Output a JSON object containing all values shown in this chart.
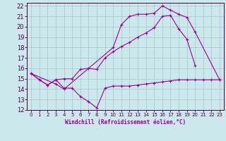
{
  "xlabel": "Windchill (Refroidissement éolien,°C)",
  "ylabel": "",
  "xlim": [
    -0.5,
    23.5
  ],
  "ylim": [
    12,
    22.3
  ],
  "yticks": [
    12,
    13,
    14,
    15,
    16,
    17,
    18,
    19,
    20,
    21,
    22
  ],
  "xticks": [
    0,
    1,
    2,
    3,
    4,
    5,
    6,
    7,
    8,
    9,
    10,
    11,
    12,
    13,
    14,
    15,
    16,
    17,
    18,
    19,
    20,
    21,
    22,
    23
  ],
  "background_color": "#cce8ec",
  "grid_color": "#aacccc",
  "line_color": "#990099",
  "line1_x": [
    0,
    1,
    2,
    3,
    4,
    5,
    6,
    7,
    8,
    9,
    10,
    11,
    12,
    13,
    14,
    15,
    16,
    17,
    18,
    19,
    20,
    21,
    22,
    23
  ],
  "line1_y": [
    15.5,
    14.9,
    14.4,
    14.9,
    14.1,
    14.1,
    13.3,
    12.8,
    12.2,
    14.1,
    14.3,
    14.3,
    14.3,
    14.4,
    14.5,
    14.6,
    14.7,
    14.8,
    14.9,
    14.9,
    14.9,
    14.9,
    14.9,
    14.9
  ],
  "line2_x": [
    0,
    1,
    2,
    3,
    4,
    5,
    6,
    7,
    8,
    9,
    10,
    11,
    12,
    13,
    14,
    15,
    16,
    17,
    18,
    19,
    20
  ],
  "line2_y": [
    15.5,
    14.9,
    14.4,
    14.9,
    15.0,
    15.0,
    15.9,
    16.0,
    15.9,
    17.0,
    17.6,
    18.1,
    18.5,
    19.0,
    19.4,
    19.9,
    21.0,
    21.1,
    19.8,
    18.8,
    16.3
  ],
  "line3_x": [
    0,
    3,
    4,
    10,
    11,
    12,
    13,
    14,
    15,
    16,
    17,
    18,
    19,
    20,
    23
  ],
  "line3_y": [
    15.5,
    14.5,
    14.0,
    18.0,
    20.2,
    21.0,
    21.2,
    21.2,
    21.3,
    22.0,
    21.6,
    21.2,
    20.9,
    19.5,
    14.9
  ]
}
